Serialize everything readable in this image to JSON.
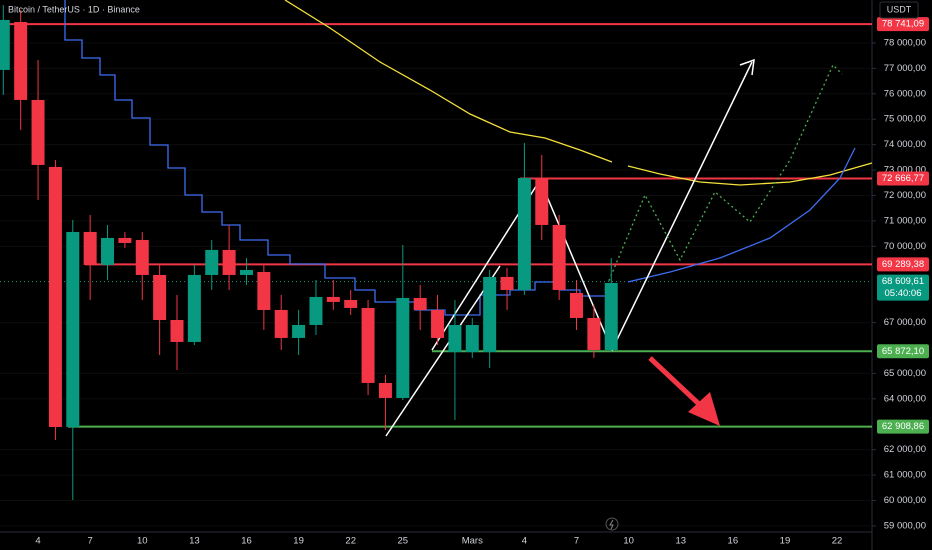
{
  "chart_data": {
    "type": "candlestick",
    "title": "Bitcoin / TetherUS · 1D · Binance",
    "currency": "USDT",
    "up_color": "#089981",
    "down_color": "#f23645",
    "categories": [
      null,
      null,
      "4",
      null,
      null,
      "7",
      null,
      null,
      "10",
      null,
      null,
      "13",
      null,
      null,
      "16",
      null,
      null,
      "19",
      null,
      null,
      "22",
      null,
      null,
      "25",
      null,
      null,
      null,
      "Mars",
      null,
      null,
      "4",
      null,
      null,
      "7",
      null,
      null,
      "10",
      null,
      null,
      "13",
      null,
      null,
      "16",
      null,
      null,
      "19",
      null,
      null,
      "22",
      null
    ],
    "open": [
      76938,
      78826,
      75758,
      73122,
      62893,
      70565,
      69267,
      70329,
      70250,
      68873,
      67102,
      66237,
      68873,
      69857,
      68873,
      68991,
      67496,
      66395,
      66906,
      68008,
      67889,
      67575,
      64624,
      64034,
      67968,
      67496,
      65844,
      65844,
      65844,
      68795,
      68283,
      72689,
      70840,
      68165,
      67181,
      65922,
      null,
      null,
      null,
      null,
      null,
      null,
      null,
      null,
      null,
      null,
      null,
      null,
      null,
      null
    ],
    "high": [
      79495,
      79298,
      77331,
      73397,
      71037,
      71234,
      70840,
      70565,
      70565,
      69267,
      68087,
      69267,
      70250,
      70840,
      69542,
      69267,
      68087,
      67496,
      68677,
      68677,
      68283,
      67889,
      64939,
      70053,
      68480,
      68087,
      67889,
      67181,
      69070,
      69149,
      74066,
      73594,
      71234,
      68677,
      67693,
      69542,
      null,
      null,
      null,
      null,
      null,
      null,
      null,
      null,
      null,
      null,
      null,
      null,
      null,
      null
    ],
    "low": [
      75954,
      74578,
      71824,
      62382,
      60022,
      67889,
      68677,
      69935,
      67889,
      65726,
      65136,
      66119,
      68283,
      68283,
      68480,
      66710,
      65922,
      65726,
      66513,
      67496,
      67299,
      64152,
      62775,
      63955,
      66710,
      66119,
      63169,
      65608,
      65215,
      67496,
      68087,
      70250,
      67889,
      66710,
      65608,
      65844,
      null,
      null,
      null,
      null,
      null,
      null,
      null,
      null,
      null,
      null,
      null,
      null,
      null,
      null
    ],
    "close": [
      78905,
      75758,
      73201,
      62893,
      70565,
      69267,
      70329,
      70132,
      68873,
      67102,
      66237,
      68873,
      69857,
      68873,
      69070,
      67496,
      66395,
      66906,
      68008,
      67811,
      67575,
      64624,
      64034,
      67968,
      67496,
      66395,
      66906,
      66906,
      68795,
      68283,
      72689,
      70840,
      68283,
      67181,
      65922,
      68558,
      null,
      null,
      null,
      null,
      null,
      null,
      null,
      null,
      null,
      null,
      null,
      null,
      null,
      null
    ],
    "ylim": [
      58840,
      79690
    ],
    "yticks": [
      {
        "value": 78000,
        "label": "78 000,00"
      },
      {
        "value": 77000,
        "label": "77 000,00"
      },
      {
        "value": 76000,
        "label": "76 000,00"
      },
      {
        "value": 75000,
        "label": "75 000,00"
      },
      {
        "value": 74000,
        "label": "74 000,00"
      },
      {
        "value": 73000,
        "label": "73 000,00"
      },
      {
        "value": 72000,
        "label": "72 000,00"
      },
      {
        "value": 71000,
        "label": "71 000,00"
      },
      {
        "value": 70000,
        "label": "70 000,00"
      },
      {
        "value": 67000,
        "label": "67 000,00"
      },
      {
        "value": 65000,
        "label": "65 000,00"
      },
      {
        "value": 64000,
        "label": "64 000,00"
      },
      {
        "value": 62000,
        "label": "62 000,00"
      },
      {
        "value": 61000,
        "label": "61 000,00"
      },
      {
        "value": 60000,
        "label": "60 000,00"
      },
      {
        "value": 59000,
        "label": "59 000,00"
      }
    ],
    "levels": [
      {
        "value": 78741.09,
        "label": "78 741,09",
        "color": "#f23645"
      },
      {
        "value": 72666.77,
        "label": "72 666,77",
        "color": "#f23645"
      },
      {
        "value": 69289.38,
        "label": "69 289,38",
        "color": "#f23645"
      },
      {
        "value": 65872.1,
        "label": "65 872,10",
        "color": "#4caf50"
      },
      {
        "value": 62908.86,
        "label": "62 908,86",
        "color": "#4caf50"
      }
    ],
    "last_price": {
      "value": 68609.61,
      "label": "68 609,61",
      "countdown": "05:40:06",
      "color": "#089981"
    }
  }
}
